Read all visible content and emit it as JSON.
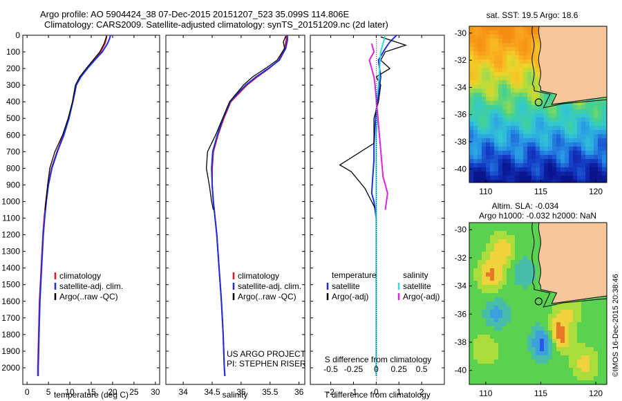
{
  "header": {
    "line1": "Argo profile: AO 5904424_38 07-Dec-2015 20151207_523 35.099S 114.806E",
    "line2": "Climatology: CARS2009. Satellite-adjusted climatology: synTS_20151209.nc (2d later)"
  },
  "colors": {
    "climatology": "#e8141e",
    "satellite": "#1a2fe0",
    "argo": "#000000",
    "argo_adj": "#e020e0",
    "sat_salinity": "#30d8e0",
    "land": "#f7c69a"
  },
  "chart_data": [
    {
      "type": "line",
      "panel": "temperature",
      "xlabel": "temperature (deg C)",
      "ylabel": "",
      "xlim": [
        -1,
        31
      ],
      "ylim": [
        2100,
        0
      ],
      "xticks": [
        0,
        5,
        10,
        15,
        20,
        25,
        30
      ],
      "yticks": [
        0,
        100,
        200,
        300,
        400,
        500,
        600,
        700,
        800,
        900,
        1000,
        1100,
        1200,
        1300,
        1400,
        1500,
        1600,
        1700,
        1800,
        1900,
        2000
      ],
      "legend": [
        "climatology",
        "satellite-adj. clim.",
        "Argo(..raw -QC)"
      ],
      "series": [
        {
          "name": "climatology",
          "color": "#e8141e",
          "x": [
            18.6,
            18.5,
            18.2,
            17.2,
            15.5,
            14.0,
            12.5,
            11.5,
            10.7,
            9.7,
            8.5,
            7.0,
            5.7,
            4.9,
            4.4,
            4.0,
            3.7,
            3.3,
            3.1,
            2.9,
            2.7,
            2.6,
            2.5,
            2.5
          ],
          "y": [
            0,
            20,
            50,
            100,
            150,
            200,
            250,
            300,
            400,
            500,
            600,
            700,
            800,
            900,
            1000,
            1100,
            1200,
            1400,
            1500,
            1600,
            1800,
            1900,
            2000,
            2050
          ]
        },
        {
          "name": "satellite-adj. clim.",
          "color": "#1a2fe0",
          "x": [
            19.5,
            19.3,
            18.8,
            17.6,
            15.8,
            14.1,
            12.6,
            11.5,
            10.7,
            9.8,
            8.6,
            7.1,
            5.8,
            5.0,
            4.5,
            4.1,
            3.8,
            3.4,
            3.2,
            3.0,
            2.8,
            2.7,
            2.6,
            2.6
          ],
          "y": [
            0,
            20,
            50,
            100,
            150,
            200,
            250,
            300,
            400,
            500,
            600,
            700,
            800,
            900,
            1000,
            1100,
            1200,
            1400,
            1500,
            1600,
            1800,
            1900,
            2000,
            2050
          ]
        },
        {
          "name": "Argo(..raw -QC)",
          "color": "#000000",
          "x": [
            18.6,
            18.4,
            18.0,
            17.0,
            15.4,
            13.8,
            12.3,
            11.3,
            10.6,
            9.6,
            8.3,
            6.5,
            5.3,
            4.8,
            4.4,
            4.2
          ],
          "y": [
            5,
            20,
            50,
            100,
            150,
            200,
            250,
            300,
            400,
            500,
            600,
            700,
            800,
            900,
            1000,
            1050
          ]
        }
      ]
    },
    {
      "type": "line",
      "panel": "salinity",
      "xlabel": "salinity",
      "ylabel": "",
      "xlim": [
        33.7,
        36.1
      ],
      "ylim": [
        2100,
        0
      ],
      "xticks": [
        34,
        34.5,
        35,
        35.5,
        36
      ],
      "legend": [
        "climatology",
        "satellite-adj. clim.",
        "Argo(..raw -QC)"
      ],
      "annotations": [
        "US ARGO PROJECT",
        "PI: STEPHEN RISER"
      ],
      "series": [
        {
          "name": "climatology",
          "color": "#e8141e",
          "x": [
            35.78,
            35.78,
            35.75,
            35.65,
            35.48,
            35.28,
            35.1,
            34.96,
            34.82,
            34.7,
            34.6,
            34.52,
            34.5,
            34.5,
            34.52,
            34.55,
            34.58,
            34.62,
            34.66,
            34.69,
            34.71,
            34.72
          ],
          "y": [
            0,
            30,
            80,
            150,
            200,
            250,
            300,
            350,
            400,
            500,
            600,
            700,
            800,
            900,
            1000,
            1100,
            1200,
            1400,
            1600,
            1800,
            2000,
            2050
          ]
        },
        {
          "name": "satellite-adj. clim.",
          "color": "#1a2fe0",
          "x": [
            35.8,
            35.8,
            35.77,
            35.66,
            35.47,
            35.26,
            35.08,
            34.94,
            34.81,
            34.69,
            34.59,
            34.51,
            34.49,
            34.5,
            34.52,
            34.55,
            34.58,
            34.62,
            34.66,
            34.69,
            34.71,
            34.72
          ],
          "y": [
            0,
            30,
            80,
            150,
            200,
            250,
            300,
            350,
            400,
            500,
            600,
            700,
            800,
            900,
            1000,
            1100,
            1200,
            1400,
            1600,
            1800,
            2000,
            2050
          ]
        },
        {
          "name": "Argo(..raw -QC)",
          "color": "#000000",
          "x": [
            35.77,
            35.73,
            35.75,
            35.62,
            35.42,
            35.2,
            35.04,
            34.92,
            34.8,
            34.68,
            34.56,
            34.42,
            34.4,
            34.45,
            34.49,
            34.52
          ],
          "y": [
            5,
            40,
            80,
            150,
            200,
            250,
            300,
            350,
            400,
            500,
            600,
            700,
            800,
            900,
            1000,
            1050
          ]
        }
      ]
    },
    {
      "type": "line",
      "panel": "difference",
      "xlabel": "T difference from climatology",
      "xlabel_top": "S difference from climatology",
      "xlim": [
        -2.9,
        3.0
      ],
      "ylim": [
        2100,
        0
      ],
      "xticks_T": [
        -2,
        -1,
        0,
        1,
        2
      ],
      "xticks_S": [
        -0.5,
        -0.25,
        0,
        0.25,
        0.5
      ],
      "legend": [
        "temperature",
        "satellite",
        "Argo(-adj)",
        "salinity",
        "satellite",
        "Argo(-adj)"
      ],
      "series": [
        {
          "name": "temperature satellite",
          "color": "#1a2fe0",
          "x": [
            0.9,
            0.6,
            0.4,
            0.1,
            0.2,
            0.1,
            0.0,
            -0.05,
            -0.1,
            -0.1,
            -0.15,
            -0.2,
            -0.1,
            -0.05,
            0.0,
            0.0,
            0.0,
            0.0
          ],
          "y": [
            0,
            40,
            80,
            150,
            250,
            350,
            450,
            550,
            650,
            750,
            850,
            950,
            1000,
            1050,
            1100,
            1500,
            1900,
            2050
          ]
        },
        {
          "name": "temperature Argo(-adj)",
          "color": "#000000",
          "x": [
            0.2,
            1.3,
            0.4,
            0.2,
            0.6,
            0.0,
            0.2,
            0.1,
            -0.1,
            -0.1,
            -1.6,
            -1.1,
            -0.5,
            -0.05
          ],
          "y": [
            10,
            60,
            100,
            150,
            200,
            250,
            300,
            400,
            500,
            650,
            780,
            820,
            920,
            1040
          ]
        },
        {
          "name": "salinity satellite",
          "color": "#30d8e0",
          "x": [
            0.4,
            0.3,
            0.2,
            0.15,
            0.1,
            0.0,
            0.05,
            0.0,
            0.0,
            0.0,
            0.0,
            0.0
          ],
          "y": [
            0,
            50,
            100,
            200,
            300,
            400,
            500,
            600,
            700,
            1100,
            1600,
            2050
          ]
        },
        {
          "name": "salinity Argo(-adj)",
          "color": "#e020e0",
          "x": [
            -0.2,
            -0.1,
            -0.3,
            -0.2,
            -0.1,
            -0.05,
            0.3,
            0.4,
            0.5,
            0.4
          ],
          "y": [
            50,
            100,
            150,
            200,
            250,
            300,
            850,
            900,
            950,
            1050
          ]
        }
      ]
    },
    {
      "type": "heatmap",
      "panel": "sat SST map",
      "title": "sat. SST: 19.5 Argo: 18.6",
      "xlim": [
        108.5,
        121
      ],
      "ylim": [
        -41,
        -29.5
      ],
      "xticks": [
        110,
        115,
        120
      ],
      "yticks": [
        -30,
        -32,
        -34,
        -36,
        -38,
        -40
      ],
      "argo_position": {
        "lon": 114.806,
        "lat": -35.099
      }
    },
    {
      "type": "heatmap",
      "panel": "altimetry SLA map",
      "title": "Altim. SLA: -0.034",
      "subtitle": "Argo h1000: -0.032 h2000: NaN",
      "xlim": [
        108.5,
        121
      ],
      "ylim": [
        -41,
        -29.5
      ],
      "xticks": [
        110,
        115,
        120
      ],
      "yticks": [
        -30,
        -32,
        -34,
        -36,
        -38,
        -40
      ],
      "argo_position": {
        "lon": 114.806,
        "lat": -35.099
      }
    }
  ],
  "footer": {
    "stamp": "©IMOS 16-Dec-2015 20:38:46"
  }
}
